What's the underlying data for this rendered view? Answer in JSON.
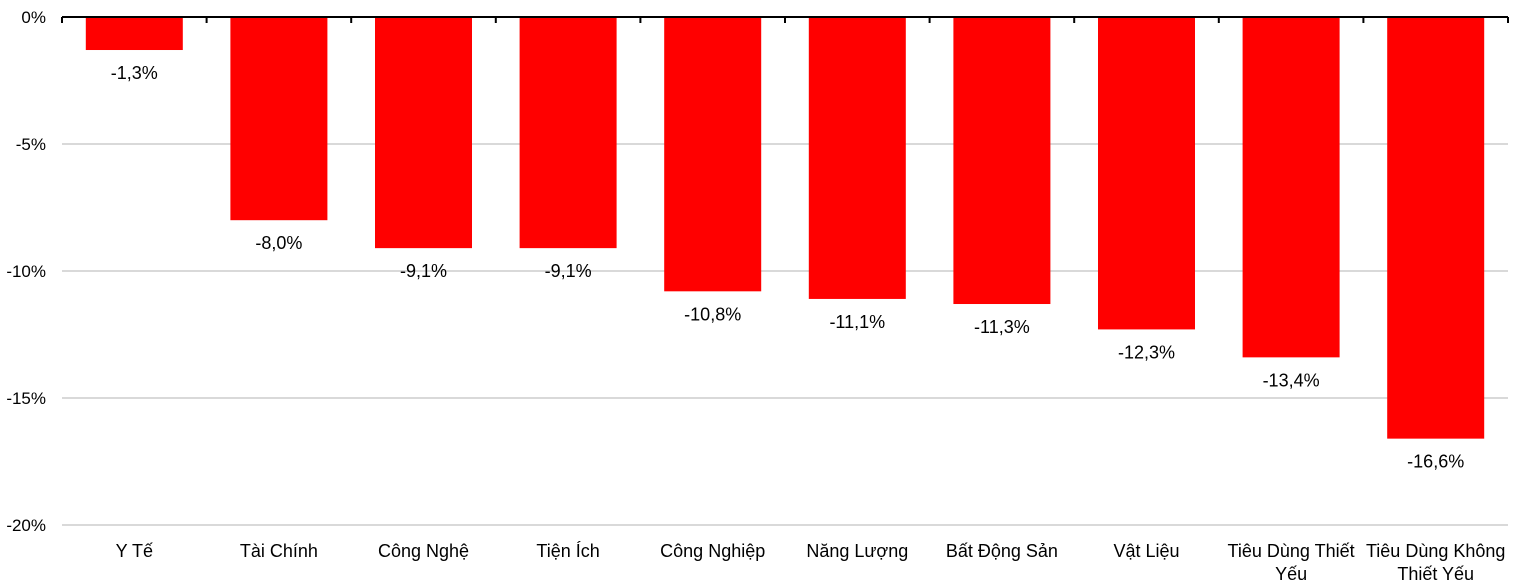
{
  "chart_data": {
    "type": "bar",
    "categories": [
      [
        "Y Tế"
      ],
      [
        "Tài Chính"
      ],
      [
        "Công Nghệ"
      ],
      [
        "Tiện Ích"
      ],
      [
        "Công Nghiệp"
      ],
      [
        "Năng Lượng"
      ],
      [
        "Bất Động Sản"
      ],
      [
        "Vật Liệu"
      ],
      [
        "Tiêu Dùng Thiết",
        "Yếu"
      ],
      [
        "Tiêu Dùng Không",
        "Thiết Yếu"
      ]
    ],
    "values": [
      -1.3,
      -8.0,
      -9.1,
      -9.1,
      -10.8,
      -11.1,
      -11.3,
      -12.3,
      -13.4,
      -16.6
    ],
    "data_labels": [
      "-1,3%",
      "-8,0%",
      "-9,1%",
      "-9,1%",
      "-10,8%",
      "-11,1%",
      "-11,3%",
      "-12,3%",
      "-13,4%",
      "-16,6%"
    ],
    "yticks": [
      0,
      -5,
      -10,
      -15,
      -20
    ],
    "ytick_labels": [
      "0%",
      "-5%",
      "-10%",
      "-15%",
      "-20%"
    ],
    "ylim": [
      -20,
      0
    ],
    "grid": true,
    "bar_color": "#ff0000",
    "grid_color": "#d9d9d9",
    "axis_color": "#000000"
  }
}
